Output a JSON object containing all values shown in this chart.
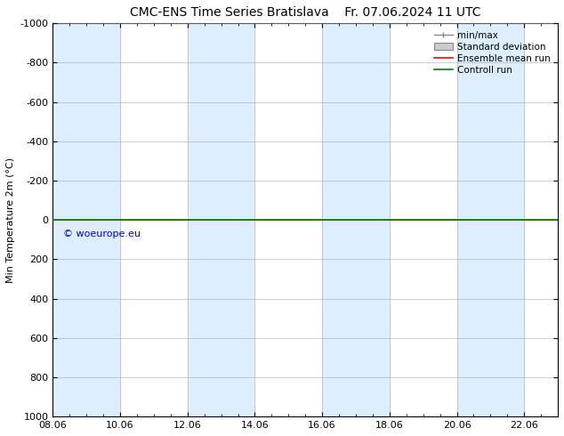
{
  "title_left": "CMC-ENS Time Series Bratislava",
  "title_right": "Fr. 07.06.2024 11 UTC",
  "ylabel": "Min Temperature 2m (°C)",
  "ylim_bottom": 1000,
  "ylim_top": -1000,
  "yticks": [
    -1000,
    -800,
    -600,
    -400,
    -200,
    0,
    200,
    400,
    600,
    800,
    1000
  ],
  "xtick_labels": [
    "08.06",
    "10.06",
    "12.06",
    "14.06",
    "16.06",
    "18.06",
    "20.06",
    "22.06"
  ],
  "xtick_positions": [
    0,
    2,
    4,
    6,
    8,
    10,
    12,
    14
  ],
  "xlim": [
    0,
    15
  ],
  "shaded_bands": [
    [
      0,
      2
    ],
    [
      4,
      6
    ],
    [
      8,
      10
    ],
    [
      12,
      14
    ]
  ],
  "shaded_color": "#ddeeff",
  "control_run_color": "#008000",
  "ensemble_mean_color": "#ff0000",
  "background_color": "#ffffff",
  "plot_bg_color": "#ffffff",
  "copyright_text": "© woeurope.eu",
  "copyright_color": "#0000cc",
  "grid_color": "#aaaaaa",
  "title_fontsize": 10,
  "axis_fontsize": 8,
  "tick_fontsize": 8
}
